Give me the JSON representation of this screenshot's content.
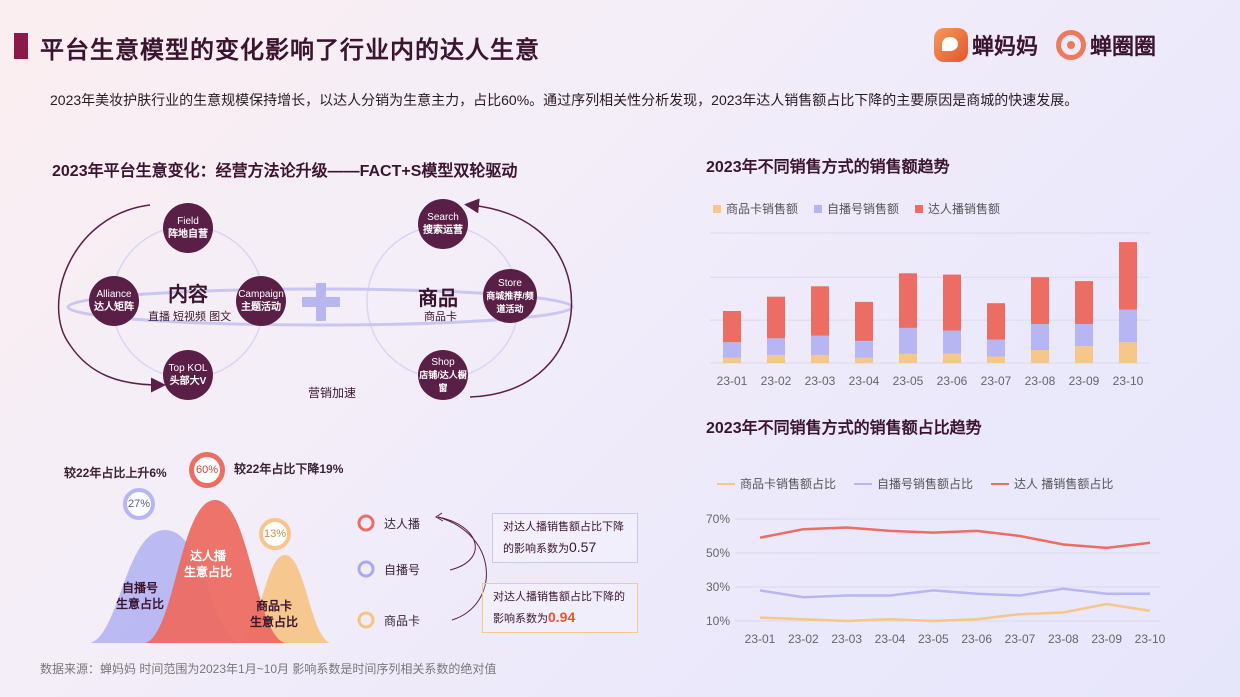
{
  "header": {
    "title": "平台生意模型的变化影响了行业内的达人生意",
    "logos": [
      "蝉妈妈",
      "蝉圈圈"
    ],
    "summary": "2023年美妆护肤行业的生意规模保持增长，以达人分销为生意主力，占比60%。通过序列相关性分析发现，2023年达人销售额占比下降的主要原因是商城的快速发展。"
  },
  "model": {
    "title": "2023年平台生意变化：经营方法论升级——FACT+S模型双轮驱动",
    "left_circle": {
      "label": "内容",
      "sub": "直播 短视频 图文",
      "nodes": [
        {
          "en": "Field",
          "cn": "阵地自营"
        },
        {
          "en": "Alliance",
          "cn": "达人矩阵"
        },
        {
          "en": "Campaign",
          "cn": "主题活动"
        },
        {
          "en": "Top KOL",
          "cn": "头部大V"
        }
      ]
    },
    "right_circle": {
      "label": "商品",
      "sub": "商品卡",
      "nodes": [
        {
          "en": "Search",
          "cn": "搜索运营"
        },
        {
          "en": "Store",
          "cn": "商城推荐/频道活动"
        },
        {
          "en": "Shop",
          "cn": "店铺/达人橱窗"
        }
      ]
    },
    "connector": "营销加速"
  },
  "share": {
    "left_annot": "较22年占比上升6%",
    "right_annot": "较22年占比下降19%",
    "mountains": [
      {
        "name": "自播号生意占比",
        "label_l1": "自播号",
        "label_l2": "生意占比",
        "pct": "27%",
        "color": "#b7b6f2"
      },
      {
        "name": "达人播生意占比",
        "label_l1": "达人播",
        "label_l2": "生意占比",
        "pct": "60%",
        "color": "#ec6d63"
      },
      {
        "name": "商品卡生意占比",
        "label_l1": "商品卡",
        "label_l2": "生意占比",
        "pct": "13%",
        "color": "#f6c68a"
      }
    ],
    "factors": [
      {
        "label": "达人播",
        "color": "#ec6d63"
      },
      {
        "label": "自播号",
        "color": "#a9a8f0"
      },
      {
        "label": "商品卡",
        "color": "#f5c580"
      }
    ],
    "note1_text": "对达人播销售额占比下降的影响系数为",
    "note1_value": "0.57",
    "note2_text": "对达人播销售额占比下降的影响系数为",
    "note2_value": "0.94"
  },
  "chart_data": [
    {
      "type": "bar",
      "title": "2023年不同销售方式的销售额趋势",
      "stacked": true,
      "categories": [
        "23-01",
        "23-02",
        "23-03",
        "23-04",
        "23-05",
        "23-06",
        "23-07",
        "23-08",
        "23-09",
        "23-10"
      ],
      "series": [
        {
          "name": "商品卡销售额",
          "color": "#f6c68a",
          "values": [
            4,
            6,
            6,
            4,
            7,
            7,
            5,
            10,
            13,
            16
          ]
        },
        {
          "name": "自播号销售额",
          "color": "#b7b6f2",
          "values": [
            12,
            13,
            15,
            13,
            20,
            18,
            13,
            20,
            17,
            25
          ]
        },
        {
          "name": "达人播销售额",
          "color": "#ec6d63",
          "values": [
            24,
            32,
            38,
            30,
            42,
            43,
            28,
            36,
            33,
            52
          ]
        }
      ],
      "ylim": [
        0,
        100
      ],
      "grid": true,
      "legend": "top-left"
    },
    {
      "type": "line",
      "title": "2023年不同销售方式的销售额占比趋势",
      "categories": [
        "23-01",
        "23-02",
        "23-03",
        "23-04",
        "23-05",
        "23-06",
        "23-07",
        "23-08",
        "23-09",
        "23-10"
      ],
      "series": [
        {
          "name": "商品卡销售额占比",
          "color": "#f6c68a",
          "values": [
            12,
            11,
            10,
            11,
            10,
            11,
            14,
            15,
            20,
            16
          ]
        },
        {
          "name": "自播号销售额占比",
          "color": "#b7b6f2",
          "values": [
            28,
            24,
            25,
            25,
            28,
            26,
            25,
            29,
            26,
            26
          ]
        },
        {
          "name": "达人 播销售额占比",
          "color": "#ec6d63",
          "values": [
            59,
            64,
            65,
            63,
            62,
            63,
            60,
            55,
            53,
            56
          ]
        }
      ],
      "yticks": [
        "70%",
        "50%",
        "30%",
        "10%"
      ],
      "ylim": [
        10,
        70
      ],
      "grid": true,
      "legend": "top-left"
    }
  ],
  "footer": "数据来源：蝉妈妈    时间范围为2023年1月~10月    影响系数是时间序列相关系数的绝对值"
}
